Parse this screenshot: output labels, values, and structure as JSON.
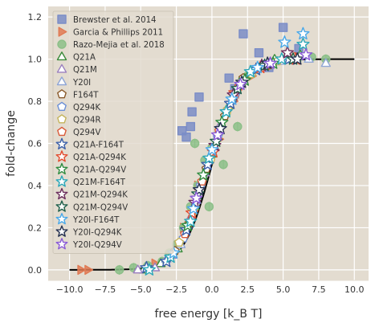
{
  "chart_data": {
    "type": "scatter",
    "xlabel": "free energy [k_B T]",
    "ylabel": "fold-change",
    "xlim": [
      -11.5,
      11
    ],
    "ylim": [
      -0.05,
      1.25
    ],
    "xticks": [
      -10.0,
      -7.5,
      -5.0,
      -2.5,
      0.0,
      2.5,
      5.0,
      7.5,
      10.0
    ],
    "xtick_labels": [
      "−10.0",
      "−7.5",
      "−5.0",
      "−2.5",
      "0.0",
      "2.5",
      "5.0",
      "7.5",
      "10.0"
    ],
    "yticks": [
      0.0,
      0.2,
      0.4,
      0.6,
      0.8,
      1.0,
      1.2
    ],
    "ytick_labels": [
      "0.0",
      "0.2",
      "0.4",
      "0.6",
      "0.8",
      "1.0",
      "1.2"
    ],
    "grid": true,
    "legend_position": "top-left",
    "background_color": "#e3dcd0",
    "theory_curve": {
      "color": "#000000",
      "x_range": [
        -10,
        10
      ],
      "formula": "1/(1+exp(-x))"
    },
    "series": [
      {
        "name": "Brewster et al. 2014",
        "marker": "square",
        "color": "#7b8dc7",
        "filled": true,
        "points": [
          [
            -2.1,
            0.66
          ],
          [
            -1.8,
            0.63
          ],
          [
            -1.5,
            0.68
          ],
          [
            -1.4,
            0.75
          ],
          [
            -0.9,
            0.82
          ],
          [
            1.2,
            0.91
          ],
          [
            1.6,
            0.86
          ],
          [
            2.2,
            1.12
          ],
          [
            3.3,
            1.03
          ],
          [
            4.0,
            0.96
          ],
          [
            5.0,
            1.15
          ],
          [
            6.1,
            1.05
          ]
        ]
      },
      {
        "name": "Garcia & Phillips 2011",
        "marker": "triangle-right",
        "color": "#e07a54",
        "filled": true,
        "points": [
          [
            -9.2,
            0.0
          ],
          [
            -8.7,
            0.0
          ],
          [
            -4.0,
            0.03
          ],
          [
            -2.0,
            0.2
          ],
          [
            -1.0,
            0.4
          ],
          [
            0.5,
            0.62
          ],
          [
            1.5,
            0.8
          ],
          [
            2.8,
            0.92
          ],
          [
            4.2,
            0.97
          ]
        ]
      },
      {
        "name": "Razo-Mejia et al. 2018",
        "marker": "circle",
        "color": "#8cbf88",
        "filled": true,
        "points": [
          [
            -6.5,
            0.0
          ],
          [
            -5.5,
            0.01
          ],
          [
            -4.5,
            0.02
          ],
          [
            -3.5,
            0.04
          ],
          [
            -3.0,
            0.08
          ],
          [
            -2.5,
            0.12
          ],
          [
            -2.0,
            0.2
          ],
          [
            -1.5,
            0.3
          ],
          [
            -1.0,
            0.4
          ],
          [
            -0.5,
            0.52
          ],
          [
            0.0,
            0.58
          ],
          [
            0.5,
            0.65
          ],
          [
            1.0,
            0.74
          ],
          [
            1.5,
            0.82
          ],
          [
            2.0,
            0.88
          ],
          [
            2.5,
            0.92
          ],
          [
            3.0,
            0.95
          ],
          [
            4.0,
            0.98
          ],
          [
            5.0,
            1.0
          ],
          [
            6.0,
            1.0
          ],
          [
            7.0,
            1.01
          ],
          [
            8.0,
            1.0
          ],
          [
            -1.2,
            0.6
          ],
          [
            -0.2,
            0.3
          ],
          [
            0.8,
            0.5
          ],
          [
            1.8,
            0.68
          ]
        ]
      },
      {
        "name": "Q21A",
        "marker": "triangle-up",
        "color": "#3a8a3a",
        "filled": false,
        "points": [
          [
            -4.8,
            0.0
          ],
          [
            -3.6,
            0.03
          ],
          [
            -2.4,
            0.1
          ],
          [
            -1.2,
            0.3
          ],
          [
            0.0,
            0.55
          ],
          [
            1.2,
            0.78
          ],
          [
            2.6,
            0.93
          ],
          [
            4.4,
            1.0
          ],
          [
            6.2,
            1.02
          ]
        ]
      },
      {
        "name": "Q21M",
        "marker": "triangle-up",
        "color": "#9a7fbf",
        "filled": false,
        "points": [
          [
            -5.2,
            0.0
          ],
          [
            -4.0,
            0.01
          ],
          [
            -2.8,
            0.07
          ],
          [
            -1.5,
            0.25
          ],
          [
            -0.5,
            0.46
          ],
          [
            0.6,
            0.69
          ],
          [
            2.0,
            0.88
          ],
          [
            3.6,
            0.97
          ],
          [
            5.6,
            1.0
          ]
        ]
      },
      {
        "name": "Y20I",
        "marker": "triangle-up",
        "color": "#8fa6d6",
        "filled": false,
        "points": [
          [
            -3.2,
            0.05
          ],
          [
            -2.2,
            0.12
          ],
          [
            -1.1,
            0.33
          ],
          [
            0.2,
            0.58
          ],
          [
            1.4,
            0.8
          ],
          [
            3.0,
            0.95
          ],
          [
            4.8,
            0.99
          ],
          [
            6.8,
            1.0
          ],
          [
            8.0,
            0.98
          ]
        ]
      },
      {
        "name": "F164T",
        "marker": "pentagon",
        "color": "#8a5a2b",
        "filled": false,
        "points": [
          [
            -2.6,
            0.09
          ],
          [
            -1.6,
            0.22
          ],
          [
            -0.4,
            0.48
          ],
          [
            0.9,
            0.73
          ],
          [
            2.2,
            0.91
          ],
          [
            4.0,
            0.98
          ]
        ]
      },
      {
        "name": "Q294K",
        "marker": "pentagon",
        "color": "#6b8fd6",
        "filled": false,
        "points": [
          [
            -2.0,
            0.15
          ],
          [
            -0.8,
            0.4
          ],
          [
            0.4,
            0.63
          ],
          [
            1.7,
            0.84
          ],
          [
            3.3,
            0.96
          ],
          [
            5.2,
            1.0
          ]
        ]
      },
      {
        "name": "Q294R",
        "marker": "pentagon",
        "color": "#c4b35a",
        "filled": false,
        "points": [
          [
            -2.3,
            0.13
          ],
          [
            -1.3,
            0.28
          ],
          [
            -0.1,
            0.52
          ],
          [
            1.1,
            0.76
          ],
          [
            2.8,
            0.93
          ],
          [
            4.6,
            0.99
          ]
        ]
      },
      {
        "name": "Q294V",
        "marker": "pentagon",
        "color": "#d95b3a",
        "filled": false,
        "points": [
          [
            -1.9,
            0.17
          ],
          [
            -0.7,
            0.42
          ],
          [
            0.5,
            0.66
          ],
          [
            1.9,
            0.87
          ],
          [
            3.8,
            0.97
          ],
          [
            5.8,
            1.01
          ]
        ]
      },
      {
        "name": "Q21A-F164T",
        "marker": "star",
        "color": "#3b5fa8",
        "filled": false,
        "points": [
          [
            -4.6,
            0.01
          ],
          [
            -3.2,
            0.04
          ],
          [
            -1.8,
            0.19
          ],
          [
            -0.3,
            0.5
          ],
          [
            1.3,
            0.79
          ],
          [
            3.1,
            0.95
          ],
          [
            5.4,
            1.0
          ]
        ]
      },
      {
        "name": "Q21A-Q294K",
        "marker": "star",
        "color": "#e24b2e",
        "filled": false,
        "points": [
          [
            -1.4,
            0.27
          ],
          [
            0.1,
            0.56
          ],
          [
            1.6,
            0.84
          ],
          [
            3.4,
            0.96
          ],
          [
            5.9,
            1.0
          ]
        ]
      },
      {
        "name": "Q21A-Q294V",
        "marker": "star",
        "color": "#2e8b3f",
        "filled": false,
        "points": [
          [
            -1.7,
            0.21
          ],
          [
            -0.6,
            0.45
          ],
          [
            0.7,
            0.7
          ],
          [
            2.3,
            0.9
          ],
          [
            4.3,
            0.98
          ]
        ]
      },
      {
        "name": "Q21M-F164T",
        "marker": "star",
        "color": "#2aa6b8",
        "filled": false,
        "points": [
          [
            -4.4,
            0.0
          ],
          [
            -2.9,
            0.06
          ],
          [
            -1.5,
            0.23
          ],
          [
            -0.2,
            0.53
          ],
          [
            1.0,
            0.75
          ],
          [
            2.7,
            0.94
          ],
          [
            4.9,
            1.0
          ],
          [
            6.4,
            1.07
          ]
        ]
      },
      {
        "name": "Q21M-Q294K",
        "marker": "star",
        "color": "#6b2d5c",
        "filled": false,
        "points": [
          [
            -1.2,
            0.32
          ],
          [
            0.2,
            0.59
          ],
          [
            1.5,
            0.83
          ],
          [
            3.5,
            0.97
          ],
          [
            5.3,
            1.03
          ]
        ]
      },
      {
        "name": "Q21M-Q294V",
        "marker": "star",
        "color": "#1f5f4a",
        "filled": false,
        "points": [
          [
            -1.0,
            0.36
          ],
          [
            0.3,
            0.61
          ],
          [
            1.8,
            0.86
          ],
          [
            3.7,
            0.97
          ],
          [
            5.7,
            1.0
          ]
        ]
      },
      {
        "name": "Y20I-F164T",
        "marker": "star",
        "color": "#4aa8e8",
        "filled": false,
        "points": [
          [
            -2.7,
            0.08
          ],
          [
            -1.3,
            0.29
          ],
          [
            0.0,
            0.57
          ],
          [
            1.4,
            0.81
          ],
          [
            3.2,
            0.96
          ],
          [
            5.1,
            1.08
          ],
          [
            6.4,
            1.12
          ]
        ]
      },
      {
        "name": "Y20I-Q294K",
        "marker": "star",
        "color": "#24304f",
        "filled": false,
        "points": [
          [
            -0.9,
            0.38
          ],
          [
            0.6,
            0.67
          ],
          [
            2.1,
            0.89
          ],
          [
            3.9,
            0.98
          ],
          [
            6.0,
            1.0
          ]
        ]
      },
      {
        "name": "Y20I-Q294V",
        "marker": "star",
        "color": "#8a5ad6",
        "filled": false,
        "points": [
          [
            -1.1,
            0.34
          ],
          [
            0.4,
            0.64
          ],
          [
            2.0,
            0.88
          ],
          [
            4.1,
            0.98
          ],
          [
            6.6,
            1.02
          ]
        ]
      }
    ]
  }
}
